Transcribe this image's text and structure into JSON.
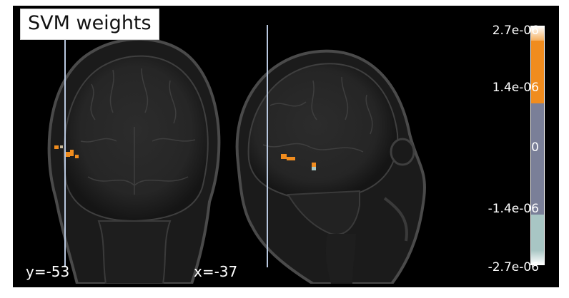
{
  "title": "SVM weights",
  "views": [
    {
      "name": "coronal",
      "coord_label": "y=-53"
    },
    {
      "name": "sagittal",
      "coord_label": "x=-37"
    }
  ],
  "colorbar": {
    "ticks": [
      "2.7e-06",
      "1.4e-06",
      "0",
      "-1.4e-06",
      "-2.7e-06"
    ],
    "colors": {
      "top": "#ffffff",
      "positive": "#f08c1e",
      "neutral": "#7a7f98",
      "negative": "#a8c6c4",
      "bottom": "#ffffff"
    }
  },
  "colors": {
    "background": "#000000",
    "brain_tissue": "#3a3a3a",
    "activation": "#f08c1e",
    "cut_line": "#b9c8e0"
  }
}
